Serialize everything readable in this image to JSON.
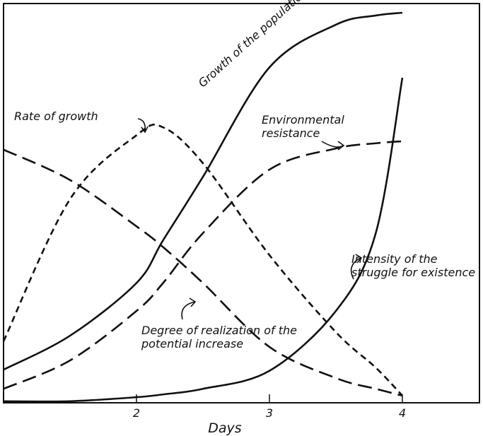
{
  "chart_data": {
    "type": "line",
    "x_label": "Days",
    "x": [
      1,
      1.5,
      2,
      2.2,
      2.5,
      3,
      3.5,
      3.8,
      4
    ],
    "xlim": [
      1,
      4.58
    ],
    "xticks": [
      2,
      3,
      4
    ],
    "ylim": [
      0,
      100
    ],
    "series": [
      {
        "name": "Growth of the population",
        "color": "#111111",
        "style": "solid",
        "values": [
          8.3,
          16.8,
          30,
          40.7,
          56.6,
          84,
          94.7,
          97,
          97.7
        ]
      },
      {
        "name": "Rate of growth",
        "color": "#111111",
        "style": "short-dash",
        "values": [
          15.4,
          51,
          67,
          69,
          60,
          37,
          17.7,
          8.8,
          1.8
        ]
      },
      {
        "name": "Environmental resistance",
        "color": "#111111",
        "style": "long-dash",
        "values": [
          3.5,
          10.6,
          23,
          30,
          42.5,
          58.4,
          63.7,
          65,
          65.5
        ]
      },
      {
        "name": "Degree of realization of the potential increase",
        "color": "#111111",
        "style": "long-dash",
        "values": [
          63.4,
          55.8,
          44.2,
          39,
          30,
          14,
          6.2,
          3.5,
          1.8
        ]
      },
      {
        "name": "Intensity of the struggle for existence",
        "color": "#111111",
        "style": "solid",
        "values": [
          0.4,
          0.4,
          1.4,
          2.1,
          3.5,
          8,
          23,
          42.5,
          81.4
        ]
      }
    ]
  }
}
